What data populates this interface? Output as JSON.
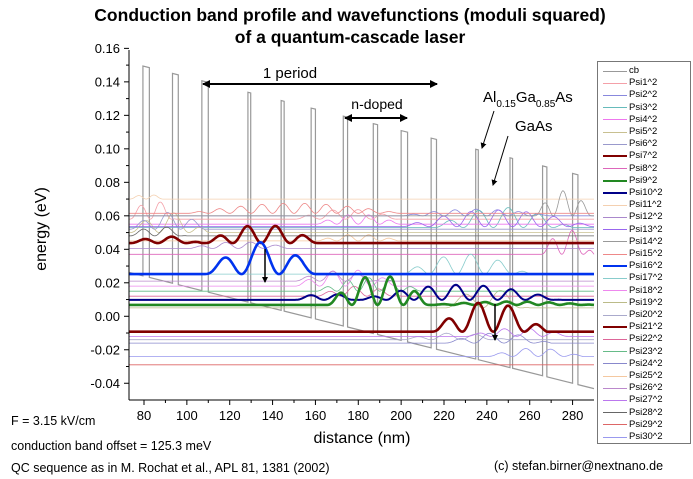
{
  "title": {
    "line1": "Conduction band profile and wavefunctions (moduli squared)",
    "line2": "of a quantum-cascade laser"
  },
  "notes": {
    "field": "F = 3.15 kV/cm",
    "offset": "conduction band offset = 125.3 meV",
    "sequence": "QC sequence as in M. Rochat et al., APL 81, 1381 (2002)",
    "copyright": "(c) stefan.birner@nextnano.de"
  },
  "annotations": {
    "period": "1 period",
    "ndoped": "n-doped",
    "algaas": {
      "a": "Al",
      "b": "0.15",
      "c": "Ga",
      "d": "0.85",
      "e": "As"
    },
    "gaas": "GaAs"
  },
  "chart_data": {
    "type": "line",
    "title": "Conduction band profile and wavefunctions (moduli squared) of a quantum-cascade laser",
    "xlabel": "distance (nm)",
    "ylabel": "energy (eV)",
    "xlim": [
      73,
      290
    ],
    "ylim": [
      -0.05,
      0.165
    ],
    "xticks": [
      "80",
      "100",
      "120",
      "140",
      "160",
      "180",
      "200",
      "220",
      "240",
      "260",
      "280"
    ],
    "yticks": [
      "0.16",
      "0.14",
      "0.12",
      "0.10",
      "0.08",
      "0.06",
      "0.04",
      "0.02",
      "0.00",
      "-0.02",
      "-0.04"
    ],
    "legend_position": "right",
    "grid": false,
    "cb": {
      "name": "cb",
      "color": "#999999",
      "well_bottom_at_80nm": 0.024,
      "slope_eV_per_nm": -0.00032,
      "barrier_height": 0.1253,
      "barriers": [
        [
          79.5,
          82.5
        ],
        [
          93.3,
          96
        ],
        [
          107,
          110
        ],
        [
          128.5,
          129.8
        ],
        [
          144,
          145.4
        ],
        [
          158,
          160
        ],
        [
          173,
          175
        ],
        [
          187,
          189
        ],
        [
          200,
          203
        ],
        [
          214,
          216.5
        ],
        [
          234.8,
          236
        ],
        [
          250.8,
          252
        ],
        [
          266,
          268
        ],
        [
          280,
          282.5
        ]
      ]
    },
    "series": [
      {
        "name": "Psi1^2",
        "color": "#f4a0a8",
        "width": 0.8,
        "E": 0.058,
        "osc": [
          [
            73,
            95,
            0.012,
            10
          ],
          [
            150,
            200,
            0.006,
            12
          ]
        ]
      },
      {
        "name": "Psi2^2",
        "color": "#8888dd",
        "width": 0.8,
        "E": 0.06,
        "osc": [
          [
            200,
            270,
            0.004,
            10
          ]
        ]
      },
      {
        "name": "Psi3^2",
        "color": "#66bbbb",
        "width": 0.8,
        "E": 0.053,
        "osc": [
          [
            215,
            280,
            0.012,
            14
          ]
        ]
      },
      {
        "name": "Psi4^2",
        "color": "#ee77ee",
        "width": 0.8,
        "E": 0.055,
        "osc": [
          [
            160,
            200,
            0.006,
            10
          ]
        ]
      },
      {
        "name": "Psi5^2",
        "color": "#c8c090",
        "width": 0.8,
        "E": 0.05,
        "osc": [
          [
            73,
            110,
            0.012,
            14
          ]
        ]
      },
      {
        "name": "Psi6^2",
        "color": "#9999cc",
        "width": 0.8,
        "E": 0.052,
        "osc": [
          [
            73,
            110,
            0.01,
            12
          ]
        ]
      },
      {
        "name": "Psi7^2",
        "color": "#800000",
        "width": 2.6,
        "E": 0.0437,
        "osc": [
          [
            73,
            107,
            0.004,
            13.4
          ],
          [
            108,
            162,
            0.011,
            13.4
          ]
        ]
      },
      {
        "name": "Psi8^2",
        "color": "#dd66bb",
        "width": 0.8,
        "E": 0.037,
        "osc": [
          [
            265,
            290,
            0.015,
            10
          ]
        ]
      },
      {
        "name": "Psi9^2",
        "color": "#228822",
        "width": 2.6,
        "E": 0.0068,
        "osc": [
          [
            165,
            214,
            0.018,
            12
          ],
          [
            214,
            290,
            0.002,
            10
          ]
        ]
      },
      {
        "name": "Psi10^2",
        "color": "#000088",
        "width": 2.0,
        "E": 0.0098,
        "osc": [
          [
            150,
            180,
            0.004,
            14
          ],
          [
            180,
            275,
            0.009,
            13
          ]
        ]
      },
      {
        "name": "Psi11^2",
        "color": "#f4d0b0",
        "width": 0.8,
        "E": 0.07,
        "osc": [
          [
            73,
            90,
            0.003,
            8
          ]
        ]
      },
      {
        "name": "Psi12^2",
        "color": "#aa88cc",
        "width": 0.8,
        "E": 0.0405,
        "osc": [
          [
            100,
            150,
            0.004,
            12
          ]
        ]
      },
      {
        "name": "Psi13^2",
        "color": "#9966ee",
        "width": 0.8,
        "E": 0.0535,
        "osc": [
          [
            200,
            290,
            0.01,
            13
          ]
        ]
      },
      {
        "name": "Psi14^2",
        "color": "#999999",
        "width": 0.8,
        "E": 0.06,
        "osc": [
          [
            262,
            290,
            0.015,
            9
          ]
        ]
      },
      {
        "name": "Psi15^2",
        "color": "#ee8888",
        "width": 0.8,
        "E": 0.0615,
        "osc": [
          [
            100,
            200,
            0.006,
            10
          ]
        ]
      },
      {
        "name": "Psi16^2",
        "color": "#0033ee",
        "width": 2.6,
        "E": 0.0252,
        "osc": [
          [
            108,
            162,
            0.019,
            17.5
          ]
        ]
      },
      {
        "name": "Psi17^2",
        "color": "#88cccc",
        "width": 0.8,
        "E": 0.0252,
        "osc": [
          [
            200,
            260,
            0.012,
            13
          ]
        ]
      },
      {
        "name": "Psi18^2",
        "color": "#ee88ee",
        "width": 0.8,
        "E": 0.018,
        "osc": [
          [
            150,
            200,
            0.01,
            12
          ]
        ]
      },
      {
        "name": "Psi19^2",
        "color": "#bbbb88",
        "width": 0.8,
        "E": 0.005,
        "osc": [
          [
            220,
            260,
            0.012,
            18
          ]
        ]
      },
      {
        "name": "Psi20^2",
        "color": "#aaaacc",
        "width": 0.8,
        "E": -0.014,
        "osc": [
          [
            200,
            250,
            0.004,
            14
          ]
        ]
      },
      {
        "name": "Psi21^2",
        "color": "#800000",
        "width": 2.6,
        "E": -0.0092,
        "osc": [
          [
            214,
            268,
            0.018,
            14.5
          ]
        ]
      },
      {
        "name": "Psi22^2",
        "color": "#dd6699",
        "width": 0.8,
        "E": 0.012,
        "osc": [
          [
            160,
            200,
            0.006,
            12
          ]
        ]
      },
      {
        "name": "Psi23^2",
        "color": "#66bb88",
        "width": 0.8,
        "E": 0.015,
        "osc": [
          [
            160,
            210,
            0.008,
            10
          ]
        ]
      },
      {
        "name": "Psi24^2",
        "color": "#8888cc",
        "width": 0.8,
        "E": -0.016,
        "osc": [
          [
            220,
            270,
            0.006,
            14
          ]
        ]
      },
      {
        "name": "Psi25^2",
        "color": "#f4c8a0",
        "width": 0.8,
        "E": 0.045,
        "osc": [
          [
            160,
            200,
            0.004,
            10
          ]
        ]
      },
      {
        "name": "Psi26^2",
        "color": "#bb88cc",
        "width": 0.8,
        "E": 0.021,
        "osc": [
          [
            150,
            190,
            0.006,
            12
          ]
        ]
      },
      {
        "name": "Psi27^2",
        "color": "#bb77ee",
        "width": 0.8,
        "E": -0.012,
        "osc": [
          [
            230,
            280,
            0.005,
            12
          ]
        ]
      },
      {
        "name": "Psi28^2",
        "color": "#666666",
        "width": 0.8,
        "E": 0.048,
        "osc": [
          [
            73,
            100,
            0.006,
            12
          ]
        ]
      },
      {
        "name": "Psi29^2",
        "color": "#dd6666",
        "width": 0.8,
        "E": -0.029,
        "osc": []
      },
      {
        "name": "Psi30^2",
        "color": "#9999ee",
        "width": 0.8,
        "E": -0.024,
        "osc": [
          [
            240,
            285,
            0.005,
            12
          ]
        ]
      }
    ]
  }
}
